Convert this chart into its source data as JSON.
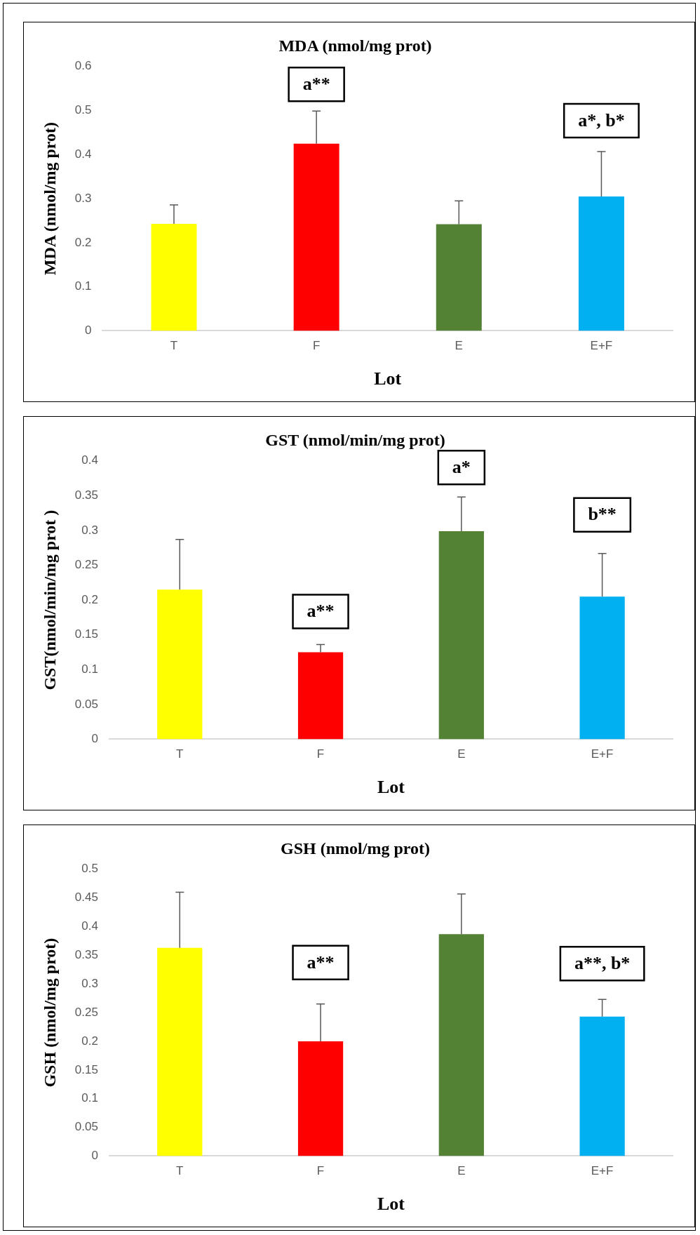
{
  "chart_data": [
    {
      "type": "bar",
      "title": "MDA (nmol/mg prot)",
      "xlabel": "Lot",
      "ylabel": "MDA (nmol/mg prot)",
      "categories": [
        "T",
        "F",
        "E",
        "E+F"
      ],
      "values": [
        0.243,
        0.425,
        0.242,
        0.305
      ],
      "colors": [
        "#ffff00",
        "#ff0000",
        "#548235",
        "#00b0f0"
      ],
      "errors": [
        [
          0.243,
          0.286
        ],
        [
          0.425,
          0.499
        ],
        [
          0.242,
          0.295
        ],
        [
          0.305,
          0.407
        ]
      ],
      "ylim": [
        0,
        0.6
      ],
      "yticks": [
        0,
        0.1,
        0.2,
        0.3,
        0.4,
        0.5,
        0.6
      ],
      "grid": false,
      "legend": false,
      "annotations": [
        "a**",
        "a*, b*"
      ]
    },
    {
      "type": "bar",
      "title": "GST (nmol/min/mg prot)",
      "xlabel": "Lot",
      "ylabel": "GST(nmol/min/mg prot )",
      "categories": [
        "T",
        "F",
        "E",
        "E+F"
      ],
      "values": [
        0.215,
        0.125,
        0.299,
        0.205
      ],
      "colors": [
        "#ffff00",
        "#ff0000",
        "#548235",
        "#00b0f0"
      ],
      "errors": [
        [
          0.215,
          0.287
        ],
        [
          0.125,
          0.136
        ],
        [
          0.299,
          0.348
        ],
        [
          0.205,
          0.267
        ]
      ],
      "ylim": [
        0,
        0.4
      ],
      "yticks": [
        0,
        0.05,
        0.1,
        0.15,
        0.2,
        0.25,
        0.3,
        0.35,
        0.4
      ],
      "grid": false,
      "legend": false,
      "annotations": [
        "a**",
        "a*",
        "b**"
      ]
    },
    {
      "type": "bar",
      "title": "GSH (nmol/mg prot)",
      "xlabel": "Lot",
      "ylabel": "GSH (nmol/mg prot)",
      "categories": [
        "T",
        "F",
        "E",
        "E+F"
      ],
      "values": [
        0.363,
        0.2,
        0.387,
        0.243
      ],
      "colors": [
        "#ffff00",
        "#ff0000",
        "#548235",
        "#00b0f0"
      ],
      "errors": [
        [
          0.363,
          0.46
        ],
        [
          0.2,
          0.265
        ],
        [
          0.387,
          0.457
        ],
        [
          0.243,
          0.273
        ]
      ],
      "ylim": [
        0,
        0.5
      ],
      "yticks": [
        0,
        0.05,
        0.1,
        0.15,
        0.2,
        0.25,
        0.3,
        0.35,
        0.4,
        0.45,
        0.5
      ],
      "grid": false,
      "legend": false,
      "annotations": [
        "a**",
        "a**, b*"
      ]
    }
  ]
}
